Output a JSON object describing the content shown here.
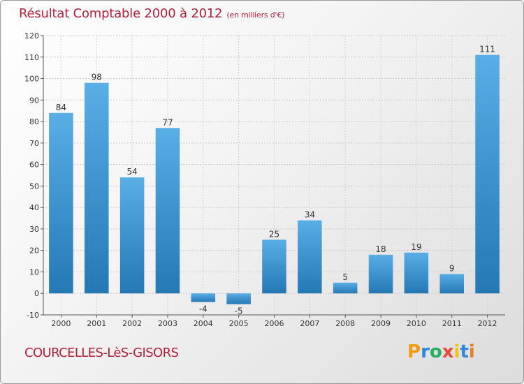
{
  "header": {
    "title": "Résultat Comptable 2000 à 2012",
    "subtitle": "(en milliers d'€)"
  },
  "footer": {
    "commune": "COURCELLES-LèS-GISORS",
    "logo": {
      "letters": [
        "P",
        "r",
        "o",
        "x",
        "i",
        "t",
        "i"
      ],
      "colors": [
        "#f39c12",
        "#2e86de",
        "#27ae60",
        "#e74c3c",
        "#f1c40f",
        "#2e86de",
        "#e67e22"
      ]
    }
  },
  "chart_data": {
    "type": "bar",
    "categories": [
      "2000",
      "2001",
      "2002",
      "2003",
      "2004",
      "2005",
      "2006",
      "2007",
      "2008",
      "2009",
      "2010",
      "2011",
      "2012"
    ],
    "values": [
      84,
      98,
      54,
      77,
      -4,
      -5,
      25,
      34,
      5,
      18,
      19,
      9,
      111
    ],
    "value_labels": [
      "84",
      "98",
      "54",
      "77",
      "-4",
      "-5",
      "25",
      "34",
      "5",
      "18",
      "19",
      "9",
      "111"
    ],
    "y_ticks": [
      -10,
      0,
      10,
      20,
      30,
      40,
      50,
      60,
      70,
      80,
      90,
      100,
      110,
      120
    ],
    "ylim": [
      -10,
      120
    ],
    "grid": true,
    "bar_color_light": "#5aaee6",
    "bar_color_dark": "#2478b4"
  }
}
